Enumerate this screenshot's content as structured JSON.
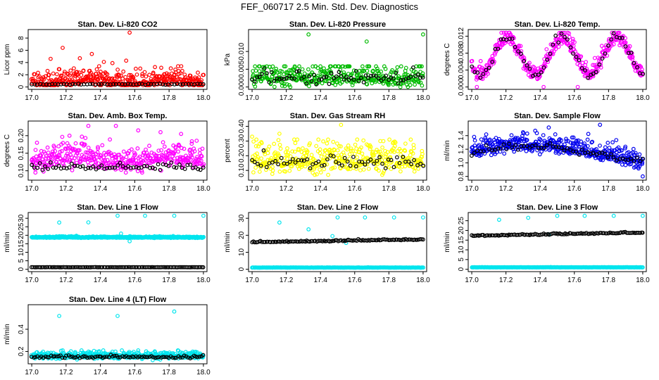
{
  "figure": {
    "title": "FEF_060717  2.5 Min. Std. Dev. Diagnostics"
  },
  "chart_data": [
    {
      "type": "scatter",
      "title": "Stan. Dev. Li-820 CO2",
      "xlabel": "",
      "ylabel": "Licor ppm",
      "xlim": [
        17.0,
        18.0
      ],
      "ylim": [
        0,
        9
      ],
      "xticks": [
        17.0,
        17.2,
        17.4,
        17.6,
        17.8,
        18.0
      ],
      "xtick_labels": [
        "17.0",
        "17.2",
        "17.4",
        "17.6",
        "17.8",
        "18.0"
      ],
      "yticks": [
        0,
        2,
        4,
        6,
        8
      ],
      "ytick_labels": [
        "0",
        "2",
        "4",
        "6",
        "8"
      ],
      "series": [
        {
          "name": "main",
          "color": "#ff0000",
          "base": 1.0,
          "spread": 0.9,
          "wave_amp": 0.4,
          "wave_period": 0.5,
          "wave_phase": 0.2,
          "count": 420,
          "x_start": 17.0,
          "x_end": 18.0,
          "clip": [
            0.3,
            3.4
          ],
          "outliers": [
            [
              17.57,
              8.9
            ],
            [
              17.18,
              6.4
            ],
            [
              17.35,
              5.4
            ],
            [
              17.28,
              4.7
            ],
            [
              17.55,
              4.3
            ],
            [
              17.11,
              4.6
            ],
            [
              17.42,
              4.1
            ],
            [
              17.47,
              3.9
            ]
          ]
        },
        {
          "name": "line",
          "color": "#000000",
          "base": 0.45,
          "spread": 0.06,
          "wave_amp": 0,
          "wave_period": 1,
          "wave_phase": 0,
          "count": 60,
          "x_start": 17.0,
          "x_end": 18.0,
          "clip": [
            0.3,
            0.7
          ],
          "outliers": []
        }
      ]
    },
    {
      "type": "scatter",
      "title": "Stan. Dev. Li-820 Pressure",
      "xlabel": "",
      "ylabel": "kPa",
      "xlim": [
        17.0,
        18.0
      ],
      "ylim": [
        0,
        0.0155
      ],
      "xticks": [
        17.0,
        17.2,
        17.4,
        17.6,
        17.8,
        18.0
      ],
      "xtick_labels": [
        "17.0",
        "17.2",
        "17.4",
        "17.6",
        "17.8",
        "18.0"
      ],
      "yticks": [
        0,
        0.005,
        0.01
      ],
      "ytick_labels": [
        "0.000",
        "0.005",
        "0.010"
      ],
      "series": [
        {
          "name": "main",
          "color": "#00bb00",
          "base": 0.0027,
          "spread": 0.0022,
          "wave_amp": 0.0,
          "wave_period": 1,
          "wave_phase": 0,
          "count": 380,
          "x_start": 17.0,
          "x_end": 18.0,
          "clip": [
            0.0,
            0.0058
          ],
          "outliers": [
            [
              17.33,
              0.0148
            ],
            [
              17.67,
              0.0128
            ],
            [
              18.0,
              0.0148
            ]
          ]
        },
        {
          "name": "line",
          "color": "#000000",
          "base": 0.0026,
          "spread": 0.0016,
          "wave_amp": 0,
          "wave_period": 1,
          "wave_phase": 0,
          "count": 70,
          "x_start": 17.0,
          "x_end": 18.0,
          "clip": [
            0.0,
            0.0055
          ],
          "outliers": []
        }
      ]
    },
    {
      "type": "scatter",
      "title": "Stan. Dev. Li-820 Temp.",
      "xlabel": "",
      "ylabel": "degrees C",
      "xlim": [
        17.0,
        18.0
      ],
      "ylim": [
        0,
        0.013
      ],
      "xticks": [
        17.0,
        17.2,
        17.4,
        17.6,
        17.8,
        18.0
      ],
      "xtick_labels": [
        "17.0",
        "17.2",
        "17.4",
        "17.6",
        "17.8",
        "18.0"
      ],
      "yticks": [
        0,
        0.004,
        0.008,
        0.012
      ],
      "ytick_labels": [
        "0.000",
        "0.004",
        "0.008",
        "0.012"
      ],
      "series": [
        {
          "name": "main",
          "color": "#ff00ff",
          "base": 0.0072,
          "spread": 0.0012,
          "wave_amp": 0.0043,
          "wave_period": 0.32,
          "wave_phase": 0.45,
          "count": 420,
          "x_start": 17.0,
          "x_end": 18.0,
          "clip": [
            0.0,
            0.0128
          ],
          "outliers": [
            [
              17.03,
              0.0
            ],
            [
              17.42,
              0.0
            ],
            [
              17.62,
              0.0
            ]
          ]
        },
        {
          "name": "line",
          "color": "#000000",
          "base": 0.0072,
          "spread": 0.0008,
          "wave_amp": 0.0043,
          "wave_period": 0.32,
          "wave_phase": 0.45,
          "count": 60,
          "x_start": 17.0,
          "x_end": 18.0,
          "clip": [
            0.0,
            0.0128
          ],
          "outliers": []
        }
      ]
    },
    {
      "type": "scatter",
      "title": "Stan. Dev. Amb. Box Temp.",
      "xlabel": "",
      "ylabel": "degrees C",
      "xlim": [
        17.0,
        18.0
      ],
      "ylim": [
        0.08,
        0.235
      ],
      "xticks": [
        17.0,
        17.2,
        17.4,
        17.6,
        17.8,
        18.0
      ],
      "xtick_labels": [
        "17.0",
        "17.2",
        "17.4",
        "17.6",
        "17.8",
        "18.0"
      ],
      "yticks": [
        0.1,
        0.15,
        0.2
      ],
      "ytick_labels": [
        "0.10",
        "0.15",
        "0.20"
      ],
      "series": [
        {
          "name": "main",
          "color": "#ff00ff",
          "base": 0.132,
          "spread": 0.022,
          "wave_amp": 0.008,
          "wave_period": 0.6,
          "wave_phase": 0.1,
          "count": 420,
          "x_start": 17.0,
          "x_end": 18.0,
          "clip": [
            0.095,
            0.2
          ],
          "outliers": [
            [
              17.33,
              0.228
            ],
            [
              17.49,
              0.228
            ],
            [
              17.62,
              0.215
            ],
            [
              17.75,
              0.21
            ],
            [
              17.87,
              0.205
            ],
            [
              17.22,
              0.2
            ]
          ]
        },
        {
          "name": "line",
          "color": "#000000",
          "base": 0.11,
          "spread": 0.008,
          "wave_amp": 0,
          "wave_period": 1,
          "wave_phase": 0,
          "count": 65,
          "x_start": 17.0,
          "x_end": 18.0,
          "clip": [
            0.092,
            0.13
          ],
          "outliers": []
        }
      ]
    },
    {
      "type": "scatter",
      "title": "Stan. Dev. Gas Stream RH",
      "xlabel": "",
      "ylabel": "percent",
      "xlim": [
        17.0,
        18.0
      ],
      "ylim": [
        0.05,
        0.42
      ],
      "xticks": [
        17.0,
        17.2,
        17.4,
        17.6,
        17.8,
        18.0
      ],
      "xtick_labels": [
        "17.0",
        "17.2",
        "17.4",
        "17.6",
        "17.8",
        "18.0"
      ],
      "yticks": [
        0.1,
        0.2,
        0.3,
        0.4
      ],
      "ytick_labels": [
        "0.10",
        "0.20",
        "0.30",
        "0.40"
      ],
      "series": [
        {
          "name": "main",
          "color": "#ffff00",
          "base": 0.17,
          "spread": 0.07,
          "wave_amp": 0.0,
          "wave_period": 1,
          "wave_phase": 0,
          "count": 420,
          "x_start": 17.0,
          "x_end": 18.0,
          "clip": [
            0.07,
            0.31
          ],
          "outliers": [
            [
              17.52,
              0.41
            ],
            [
              17.16,
              0.35
            ],
            [
              17.0,
              0.33
            ]
          ]
        },
        {
          "name": "line",
          "color": "#000000",
          "base": 0.16,
          "spread": 0.045,
          "wave_amp": 0,
          "wave_period": 1,
          "wave_phase": 0,
          "count": 60,
          "x_start": 17.0,
          "x_end": 18.0,
          "clip": [
            0.1,
            0.26
          ],
          "outliers": []
        }
      ]
    },
    {
      "type": "scatter",
      "title": "Stan. Dev. Sample Flow",
      "xlabel": "",
      "ylabel": "ml/min",
      "xlim": [
        17.0,
        18.0
      ],
      "ylim": [
        0.78,
        1.58
      ],
      "xticks": [
        17.0,
        17.2,
        17.4,
        17.6,
        17.8,
        18.0
      ],
      "xtick_labels": [
        "17.0",
        "17.2",
        "17.4",
        "17.6",
        "17.8",
        "18.0"
      ],
      "yticks": [
        0.8,
        1.0,
        1.2,
        1.4
      ],
      "ytick_labels": [
        "0.8",
        "1.0",
        "1.2",
        "1.4"
      ],
      "series": [
        {
          "name": "main",
          "color": "#0000ee",
          "base": 1.13,
          "spread": 0.08,
          "wave_amp": 0.14,
          "wave_period": 1.7,
          "wave_phase": -0.1,
          "count": 460,
          "x_start": 17.0,
          "x_end": 18.0,
          "clip": [
            0.9,
            1.48
          ],
          "outliers": [
            [
              17.75,
              1.56
            ],
            [
              17.45,
              1.52
            ],
            [
              18.0,
              0.8
            ],
            [
              17.3,
              1.45
            ]
          ]
        },
        {
          "name": "line",
          "color": "#000000",
          "base": 1.12,
          "spread": 0.05,
          "wave_amp": 0.12,
          "wave_period": 1.7,
          "wave_phase": -0.1,
          "count": 60,
          "x_start": 17.0,
          "x_end": 18.0,
          "clip": [
            0.95,
            1.35
          ],
          "outliers": []
        }
      ]
    },
    {
      "type": "scatter",
      "title": "Stan. Dev. Line 1 Flow",
      "xlabel": "",
      "ylabel": "ml/min",
      "xlim": [
        17.0,
        18.0
      ],
      "ylim": [
        0,
        32
      ],
      "xticks": [
        17.0,
        17.2,
        17.4,
        17.6,
        17.8,
        18.0
      ],
      "xtick_labels": [
        "17.0",
        "17.2",
        "17.4",
        "17.6",
        "17.8",
        "18.0"
      ],
      "yticks": [
        0,
        5,
        10,
        15,
        20,
        25,
        30
      ],
      "ytick_labels": [
        "0",
        "5",
        "10",
        "15",
        "20",
        "25",
        "30"
      ],
      "series": [
        {
          "name": "main",
          "color": "#00e5ee",
          "base": 18.8,
          "spread": 0.25,
          "wave_amp": 0.0,
          "wave_period": 1,
          "wave_phase": 0,
          "count": 600,
          "x_start": 17.0,
          "x_end": 18.0,
          "clip": [
            17.5,
            20.5
          ],
          "outliers": [
            [
              17.16,
              27.5
            ],
            [
              17.33,
              27.6
            ],
            [
              17.5,
              31.5
            ],
            [
              17.83,
              31.5
            ],
            [
              18.0,
              31.5
            ],
            [
              17.66,
              31.5
            ],
            [
              17.52,
              21.0
            ],
            [
              17.57,
              16.5
            ]
          ]
        },
        {
          "name": "line",
          "color": "#000000",
          "base": 1.2,
          "spread": 0.05,
          "wave_amp": 0,
          "wave_period": 1,
          "wave_phase": 0,
          "count": 120,
          "x_start": 17.0,
          "x_end": 18.0,
          "clip": [
            1.0,
            1.4
          ],
          "outliers": []
        }
      ]
    },
    {
      "type": "scatter",
      "title": "Stan. Dev. Line 2 Flow",
      "xlabel": "",
      "ylabel": "ml/min",
      "xlim": [
        17.0,
        18.0
      ],
      "ylim": [
        0,
        32
      ],
      "xticks": [
        17.0,
        17.2,
        17.4,
        17.6,
        17.8,
        18.0
      ],
      "xtick_labels": [
        "17.0",
        "17.2",
        "17.4",
        "17.6",
        "17.8",
        "18.0"
      ],
      "yticks": [
        0,
        10,
        20,
        30
      ],
      "ytick_labels": [
        "0",
        "10",
        "20",
        "30"
      ],
      "series": [
        {
          "name": "main",
          "color": "#00e5ee",
          "base": 1.0,
          "spread": 0.05,
          "wave_amp": 0.0,
          "wave_period": 1,
          "wave_phase": 0,
          "count": 300,
          "x_start": 17.0,
          "x_end": 18.0,
          "clip": [
            0.8,
            1.2
          ],
          "outliers": [
            [
              17.16,
              27.5
            ],
            [
              17.33,
              23.5
            ],
            [
              17.5,
              30.5
            ],
            [
              17.66,
              30.5
            ],
            [
              17.83,
              30.5
            ],
            [
              18.0,
              30.5
            ],
            [
              17.55,
              15.5
            ],
            [
              17.47,
              19.5
            ]
          ]
        },
        {
          "name": "line",
          "color": "#000000",
          "base": 16.0,
          "spread": 0.3,
          "wave_amp": 0,
          "wave_period": 1,
          "wave_phase": 0,
          "count": 120,
          "x_start": 17.0,
          "x_end": 18.0,
          "clip": [
            15.0,
            18.0
          ],
          "trend": 1.5,
          "outliers": []
        }
      ]
    },
    {
      "type": "scatter",
      "title": "Stan. Dev. Line 3 Flow",
      "xlabel": "",
      "ylabel": "ml/min",
      "xlim": [
        17.0,
        18.0
      ],
      "ylim": [
        0,
        28
      ],
      "xticks": [
        17.0,
        17.2,
        17.4,
        17.6,
        17.8,
        18.0
      ],
      "xtick_labels": [
        "17.0",
        "17.2",
        "17.4",
        "17.6",
        "17.8",
        "18.0"
      ],
      "yticks": [
        0,
        5,
        10,
        15,
        20,
        25
      ],
      "ytick_labels": [
        "0",
        "5",
        "10",
        "15",
        "20",
        "25"
      ],
      "series": [
        {
          "name": "main",
          "color": "#00e5ee",
          "base": 1.0,
          "spread": 0.05,
          "wave_amp": 0.0,
          "wave_period": 1,
          "wave_phase": 0,
          "count": 300,
          "x_start": 17.0,
          "x_end": 18.0,
          "clip": [
            0.8,
            1.2
          ],
          "outliers": [
            [
              17.16,
              25.5
            ],
            [
              17.33,
              26.5
            ],
            [
              17.5,
              27.5
            ],
            [
              17.66,
              27.5
            ],
            [
              17.83,
              27.5
            ],
            [
              18.0,
              27.5
            ],
            [
              17.45,
              18.0
            ]
          ]
        },
        {
          "name": "line",
          "color": "#000000",
          "base": 17.3,
          "spread": 0.25,
          "wave_amp": 0,
          "wave_period": 1,
          "wave_phase": 0,
          "count": 120,
          "x_start": 17.0,
          "x_end": 18.0,
          "clip": [
            16.5,
            19.5
          ],
          "trend": 1.6,
          "outliers": []
        }
      ]
    },
    {
      "type": "scatter",
      "title": "Stan. Dev. Line 4 (LT) Flow",
      "xlabel": "",
      "ylabel": "ml/min",
      "xlim": [
        17.0,
        18.0
      ],
      "ylim": [
        0.11,
        0.6
      ],
      "xticks": [
        17.0,
        17.2,
        17.4,
        17.6,
        17.8,
        18.0
      ],
      "xtick_labels": [
        "17.0",
        "17.2",
        "17.4",
        "17.6",
        "17.8",
        "18.0"
      ],
      "yticks": [
        0.2,
        0.4
      ],
      "ytick_labels": [
        "0.2",
        "0.4"
      ],
      "series": [
        {
          "name": "main",
          "color": "#00e5ee",
          "base": 0.16,
          "spread": 0.02,
          "wave_amp": 0.0,
          "wave_period": 1,
          "wave_phase": 0,
          "count": 480,
          "x_start": 17.0,
          "x_end": 18.0,
          "clip": [
            0.12,
            0.21
          ],
          "outliers": [
            [
              17.16,
              0.52
            ],
            [
              17.5,
              0.52
            ],
            [
              17.83,
              0.56
            ],
            [
              17.62,
              0.21
            ]
          ]
        },
        {
          "name": "line",
          "color": "#000000",
          "base": 0.15,
          "spread": 0.01,
          "wave_amp": 0,
          "wave_period": 1,
          "wave_phase": 0,
          "count": 90,
          "x_start": 17.0,
          "x_end": 18.0,
          "clip": [
            0.13,
            0.18
          ],
          "outliers": []
        }
      ]
    }
  ]
}
